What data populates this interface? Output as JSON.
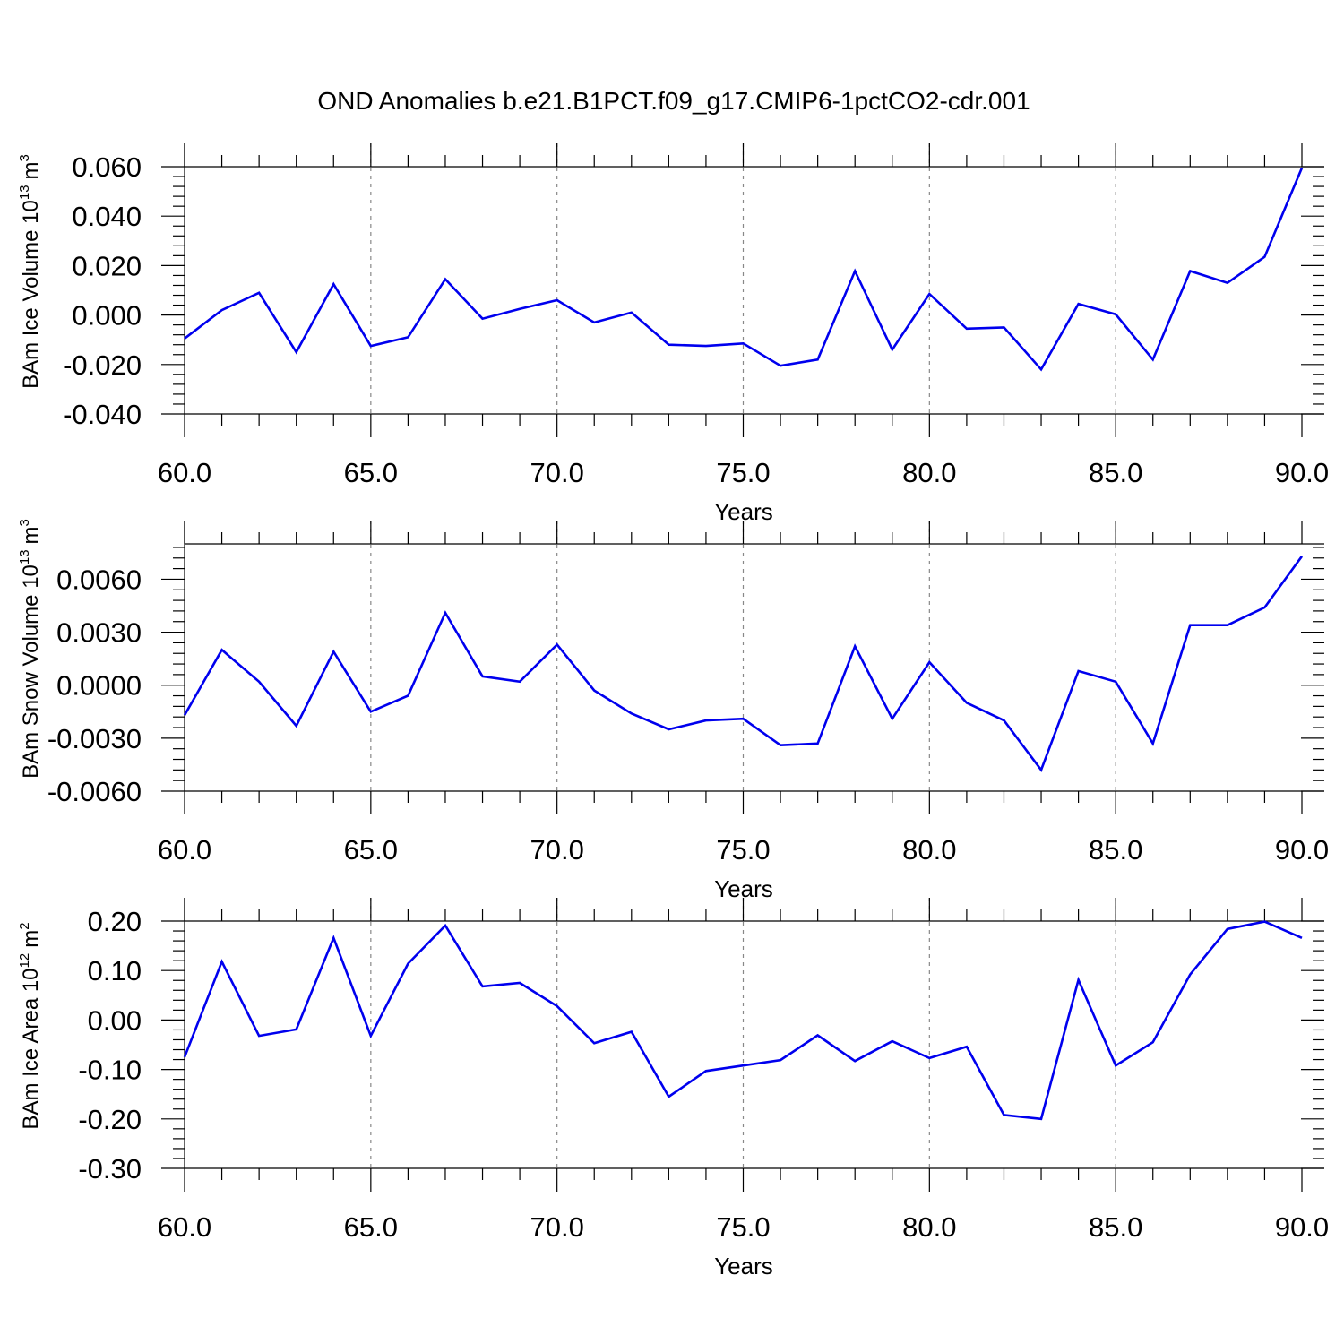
{
  "figure": {
    "title": "OND Anomalies b.e21.B1PCT.f09_g17.CMIP6-1pctCO2-cdr.001"
  },
  "chart_data": [
    {
      "type": "line",
      "panel": "ice-volume",
      "ylabel": "BAm Ice Volume 10",
      "ylabel_exp": "13",
      "ylabel_unit": "m",
      "ylabel_unit_exp": "3",
      "xlabel": "Years",
      "xlim": [
        60,
        90
      ],
      "ylim": [
        -0.04,
        0.06
      ],
      "x_ticks": [
        "60.0",
        "65.0",
        "70.0",
        "75.0",
        "80.0",
        "85.0",
        "90.0"
      ],
      "y_ticks": [
        {
          "v": -0.04,
          "label": "-0.040"
        },
        {
          "v": -0.02,
          "label": "-0.020"
        },
        {
          "v": 0.0,
          "label": "0.000"
        },
        {
          "v": 0.02,
          "label": "0.020"
        },
        {
          "v": 0.04,
          "label": "0.040"
        },
        {
          "v": 0.06,
          "label": "0.060"
        }
      ],
      "grid": "vertical dashed at major x ticks",
      "line_color": "#0000ee",
      "x": [
        60,
        61,
        62,
        63,
        64,
        65,
        66,
        67,
        68,
        69,
        70,
        71,
        72,
        73,
        74,
        75,
        76,
        77,
        78,
        79,
        80,
        81,
        82,
        83,
        84,
        85,
        86,
        87,
        88,
        89,
        90
      ],
      "values": [
        -0.0095,
        0.002,
        0.009,
        -0.015,
        0.0125,
        -0.0125,
        -0.009,
        0.0145,
        -0.0015,
        0.0025,
        0.006,
        -0.003,
        0.001,
        -0.012,
        -0.0125,
        -0.0115,
        -0.0205,
        -0.018,
        0.0178,
        -0.014,
        0.0085,
        -0.0055,
        -0.005,
        -0.022,
        0.0045,
        0.0003,
        -0.018,
        0.0178,
        0.013,
        0.0235,
        0.0595
      ]
    },
    {
      "type": "line",
      "panel": "snow-volume",
      "ylabel": "BAm Snow Volume 10",
      "ylabel_exp": "13",
      "ylabel_unit": "m",
      "ylabel_unit_exp": "3",
      "xlabel": "Years",
      "xlim": [
        60,
        90
      ],
      "ylim": [
        -0.006,
        0.008
      ],
      "x_ticks": [
        "60.0",
        "65.0",
        "70.0",
        "75.0",
        "80.0",
        "85.0",
        "90.0"
      ],
      "y_ticks": [
        {
          "v": -0.006,
          "label": "-0.0060"
        },
        {
          "v": -0.003,
          "label": "-0.0030"
        },
        {
          "v": 0.0,
          "label": "0.0000"
        },
        {
          "v": 0.003,
          "label": "0.0030"
        },
        {
          "v": 0.006,
          "label": "0.0060"
        }
      ],
      "grid": "vertical dashed at major x ticks",
      "line_color": "#0000ee",
      "x": [
        60,
        61,
        62,
        63,
        64,
        65,
        66,
        67,
        68,
        69,
        70,
        71,
        72,
        73,
        74,
        75,
        76,
        77,
        78,
        79,
        80,
        81,
        82,
        83,
        84,
        85,
        86,
        87,
        88,
        89,
        90
      ],
      "values": [
        -0.0017,
        0.002,
        0.0002,
        -0.0023,
        0.0019,
        -0.0015,
        -0.0006,
        0.0041,
        0.0005,
        0.0002,
        0.0023,
        -0.0003,
        -0.0016,
        -0.0025,
        -0.002,
        -0.0019,
        -0.0034,
        -0.0033,
        0.0022,
        -0.0019,
        0.0013,
        -0.001,
        -0.002,
        -0.0048,
        0.0008,
        0.0002,
        -0.0033,
        0.0034,
        0.0034,
        0.0044,
        0.0073
      ]
    },
    {
      "type": "line",
      "panel": "ice-area",
      "ylabel": "BAm Ice Area 10",
      "ylabel_exp": "12",
      "ylabel_unit": "m",
      "ylabel_unit_exp": "2",
      "xlabel": "Years",
      "xlim": [
        60,
        90
      ],
      "ylim": [
        -0.3,
        0.2
      ],
      "x_ticks": [
        "60.0",
        "65.0",
        "70.0",
        "75.0",
        "80.0",
        "85.0",
        "90.0"
      ],
      "y_ticks": [
        {
          "v": -0.3,
          "label": "-0.30"
        },
        {
          "v": -0.2,
          "label": "-0.20"
        },
        {
          "v": -0.1,
          "label": "-0.10"
        },
        {
          "v": 0.0,
          "label": "0.00"
        },
        {
          "v": 0.1,
          "label": "0.10"
        },
        {
          "v": 0.2,
          "label": "0.20"
        }
      ],
      "grid": "vertical dashed at major x ticks",
      "line_color": "#0000ee",
      "x": [
        60,
        61,
        62,
        63,
        64,
        65,
        66,
        67,
        68,
        69,
        70,
        71,
        72,
        73,
        74,
        75,
        76,
        77,
        78,
        79,
        80,
        81,
        82,
        83,
        84,
        85,
        86,
        87,
        88,
        89,
        90
      ],
      "values": [
        -0.075,
        0.118,
        -0.032,
        -0.019,
        0.166,
        -0.032,
        0.114,
        0.191,
        0.068,
        0.075,
        0.028,
        -0.047,
        -0.024,
        -0.155,
        -0.103,
        -0.092,
        -0.081,
        -0.031,
        -0.083,
        -0.043,
        -0.077,
        -0.054,
        -0.192,
        -0.2,
        0.081,
        -0.092,
        -0.045,
        0.092,
        0.184,
        0.199,
        0.166
      ]
    }
  ]
}
